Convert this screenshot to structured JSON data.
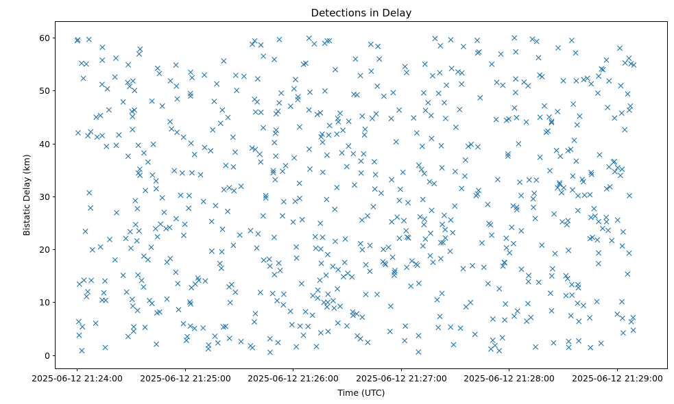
{
  "chart_data": {
    "type": "scatter",
    "title": "Detections in Delay",
    "xlabel": "Time (UTC)",
    "ylabel": "Bistatic Delay (km)",
    "marker": "x",
    "color": "#1f77b4",
    "grid": false,
    "legend": "none",
    "x_ticks": [
      "2025-06-12 21:24:00",
      "2025-06-12 21:25:00",
      "2025-06-12 21:26:00",
      "2025-06-12 21:27:00",
      "2025-06-12 21:28:00",
      "2025-06-12 21:29:00"
    ],
    "y_ticks": [
      "0",
      "10",
      "20",
      "30",
      "40",
      "50",
      "60"
    ],
    "xlim": [
      "2025-06-12 21:23:48",
      "2025-06-12 21:29:28"
    ],
    "ylim": [
      -2.5,
      63
    ],
    "point_count": 700,
    "time_range": [
      "2025-06-12 21:24:00",
      "2025-06-12 21:29:10"
    ],
    "delay_range_km": [
      0.5,
      60
    ]
  }
}
